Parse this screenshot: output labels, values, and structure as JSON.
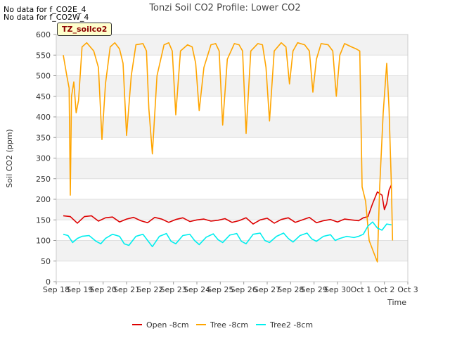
{
  "notes": [
    "No data for f_CO2E_4",
    "No data for f_CO2W_4"
  ],
  "site_label": "TZ_soilco2",
  "chart_data": {
    "type": "line",
    "title": "Tonzi Soil CO2 Profile: Lower CO2",
    "xlabel": "Time",
    "ylabel": "Soil CO2 (ppm)",
    "xlim": [
      0,
      15
    ],
    "ylim": [
      0,
      600
    ],
    "yticks": [
      0,
      50,
      100,
      150,
      200,
      250,
      300,
      350,
      400,
      450,
      500,
      550,
      600
    ],
    "xtick_labels": [
      "Sep 18",
      "Sep 19",
      "Sep 20",
      "Sep 21",
      "Sep 22",
      "Sep 23",
      "Sep 24",
      "Sep 25",
      "Sep 26",
      "Sep 27",
      "Sep 28",
      "Sep 29",
      "Sep 30",
      "Oct 1",
      "Oct 2",
      "Oct 3"
    ],
    "grid": true,
    "legend_position": "bottom",
    "series": [
      {
        "name": "Open -8cm",
        "color": "#dd0000",
        "x": [
          0.3,
          0.6,
          0.9,
          1.2,
          1.5,
          1.8,
          2.1,
          2.4,
          2.7,
          3.0,
          3.3,
          3.6,
          3.9,
          4.2,
          4.5,
          4.8,
          5.1,
          5.4,
          5.7,
          6.0,
          6.3,
          6.6,
          6.9,
          7.2,
          7.5,
          7.8,
          8.1,
          8.4,
          8.7,
          9.0,
          9.3,
          9.6,
          9.9,
          10.2,
          10.5,
          10.8,
          11.1,
          11.4,
          11.7,
          12.0,
          12.3,
          12.6,
          12.9,
          13.1,
          13.3,
          13.5,
          13.7,
          13.9,
          14.0,
          14.1,
          14.2,
          14.3
        ],
        "y": [
          160,
          158,
          142,
          158,
          160,
          147,
          155,
          157,
          145,
          152,
          156,
          148,
          143,
          156,
          152,
          144,
          151,
          155,
          146,
          150,
          152,
          147,
          149,
          153,
          144,
          148,
          155,
          140,
          150,
          154,
          142,
          151,
          155,
          144,
          150,
          156,
          143,
          148,
          151,
          145,
          152,
          150,
          148,
          155,
          158,
          190,
          218,
          210,
          175,
          190,
          222,
          235
        ]
      },
      {
        "name": "Tree -8cm",
        "color": "#ffa500",
        "x": [
          0.3,
          0.45,
          0.55,
          0.6,
          0.65,
          0.75,
          0.85,
          0.95,
          1.1,
          1.3,
          1.6,
          1.8,
          1.95,
          2.1,
          2.3,
          2.5,
          2.7,
          2.85,
          3.0,
          3.2,
          3.4,
          3.7,
          3.85,
          3.95,
          4.1,
          4.3,
          4.6,
          4.8,
          4.95,
          5.1,
          5.3,
          5.6,
          5.8,
          5.95,
          6.1,
          6.3,
          6.6,
          6.8,
          6.95,
          7.1,
          7.3,
          7.6,
          7.8,
          7.95,
          8.1,
          8.3,
          8.6,
          8.8,
          8.95,
          9.1,
          9.3,
          9.6,
          9.8,
          9.95,
          10.1,
          10.3,
          10.6,
          10.8,
          10.95,
          11.1,
          11.3,
          11.6,
          11.8,
          11.95,
          12.1,
          12.3,
          12.6,
          12.8,
          12.95,
          13.05,
          13.2,
          13.35,
          13.55,
          13.7,
          13.8,
          13.95,
          14.1,
          14.2,
          14.3,
          14.35
        ],
        "y": [
          550,
          500,
          470,
          210,
          450,
          485,
          410,
          440,
          570,
          580,
          560,
          520,
          345,
          480,
          570,
          580,
          565,
          530,
          355,
          500,
          575,
          578,
          560,
          420,
          310,
          500,
          575,
          580,
          560,
          405,
          560,
          575,
          570,
          530,
          415,
          520,
          575,
          578,
          560,
          380,
          540,
          578,
          575,
          560,
          360,
          560,
          578,
          575,
          520,
          390,
          560,
          580,
          570,
          480,
          560,
          580,
          575,
          560,
          460,
          540,
          578,
          575,
          560,
          450,
          550,
          578,
          570,
          565,
          560,
          230,
          195,
          100,
          70,
          48,
          230,
          410,
          530,
          420,
          230,
          100
        ]
      },
      {
        "name": "Tree2 -8cm",
        "color": "#00eeee",
        "x": [
          0.3,
          0.5,
          0.7,
          0.9,
          1.1,
          1.4,
          1.7,
          1.9,
          2.1,
          2.4,
          2.7,
          2.9,
          3.1,
          3.4,
          3.7,
          3.9,
          4.1,
          4.4,
          4.7,
          4.9,
          5.1,
          5.4,
          5.7,
          5.9,
          6.1,
          6.4,
          6.7,
          6.9,
          7.1,
          7.4,
          7.7,
          7.9,
          8.1,
          8.4,
          8.7,
          8.9,
          9.1,
          9.4,
          9.7,
          9.9,
          10.1,
          10.4,
          10.7,
          10.9,
          11.1,
          11.4,
          11.7,
          11.9,
          12.1,
          12.4,
          12.7,
          12.9,
          13.1,
          13.3,
          13.5,
          13.7,
          13.9,
          14.1,
          14.3
        ],
        "y": [
          115,
          112,
          95,
          105,
          110,
          112,
          98,
          92,
          105,
          115,
          110,
          92,
          88,
          110,
          115,
          100,
          85,
          110,
          117,
          98,
          92,
          112,
          115,
          100,
          90,
          108,
          116,
          102,
          95,
          113,
          117,
          98,
          92,
          115,
          118,
          100,
          95,
          110,
          118,
          105,
          96,
          112,
          118,
          104,
          98,
          110,
          114,
          100,
          105,
          110,
          107,
          110,
          115,
          135,
          145,
          130,
          125,
          140,
          138
        ]
      }
    ]
  }
}
